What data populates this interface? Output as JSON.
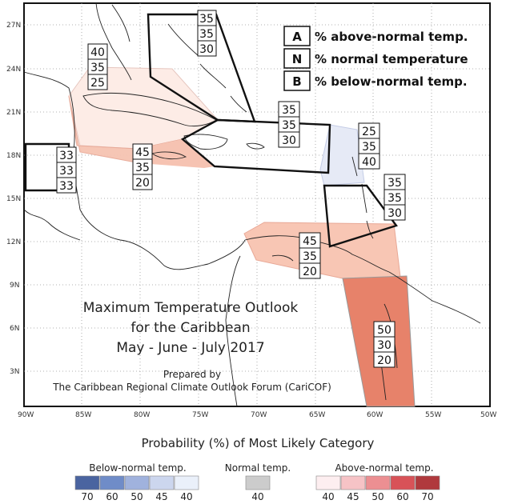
{
  "map": {
    "lat_ticks": [
      "27N",
      "24N",
      "21N",
      "18N",
      "15N",
      "12N",
      "9N",
      "6N",
      "3N"
    ],
    "lon_ticks": [
      "90W",
      "85W",
      "80W",
      "75W",
      "70W",
      "65W",
      "60W",
      "55W",
      "50W"
    ],
    "title_lines": [
      "Maximum Temperature Outlook",
      "for the Caribbean",
      "May - June - July 2017"
    ],
    "prepared_lines": [
      "Prepared by",
      "The Caribbean Regional Climate Outlook Forum (CariCOF)"
    ]
  },
  "key": {
    "above": {
      "letter": "A",
      "text": "% above-normal temp."
    },
    "normal": {
      "letter": "N",
      "text": "% normal temperature"
    },
    "below": {
      "letter": "B",
      "text": "% below-normal temp."
    }
  },
  "regions": [
    {
      "name": "Bahamas",
      "values": [
        "35",
        "35",
        "30"
      ],
      "category": "none"
    },
    {
      "name": "Cuba",
      "values": [
        "40",
        "35",
        "25"
      ],
      "category": "above-40"
    },
    {
      "name": "Belize",
      "values": [
        "33",
        "33",
        "33"
      ],
      "category": "none"
    },
    {
      "name": "Jamaica",
      "values": [
        "45",
        "35",
        "20"
      ],
      "category": "above-45"
    },
    {
      "name": "Hispaniola-PuertoRico",
      "values": [
        "35",
        "35",
        "30"
      ],
      "category": "none"
    },
    {
      "name": "Leeward-Islands",
      "values": [
        "25",
        "35",
        "40"
      ],
      "category": "below-40"
    },
    {
      "name": "Windward-Islands",
      "values": [
        "35",
        "35",
        "30"
      ],
      "category": "none"
    },
    {
      "name": "Southern-Caribbean",
      "values": [
        "45",
        "35",
        "20"
      ],
      "category": "above-45"
    },
    {
      "name": "Guianas",
      "values": [
        "50",
        "30",
        "20"
      ],
      "category": "above-50"
    }
  ],
  "legend": {
    "title": "Probability (%) of Most Likely Category",
    "below": {
      "label": "Below-normal temp.",
      "ticks": [
        "70",
        "60",
        "50",
        "45",
        "40"
      ],
      "colors": [
        "#4a64a0",
        "#6f8cc8",
        "#a0b2dd",
        "#ccd6ee",
        "#eaf0fa"
      ]
    },
    "normal": {
      "label": "Normal temp.",
      "ticks": [
        "40"
      ],
      "colors": [
        "#cccccc"
      ]
    },
    "above": {
      "label": "Above-normal temp.",
      "ticks": [
        "40",
        "45",
        "50",
        "60",
        "70"
      ],
      "colors": [
        "#fdeef0",
        "#f6c3c6",
        "#ec8f92",
        "#d85258",
        "#b0393d"
      ]
    }
  }
}
